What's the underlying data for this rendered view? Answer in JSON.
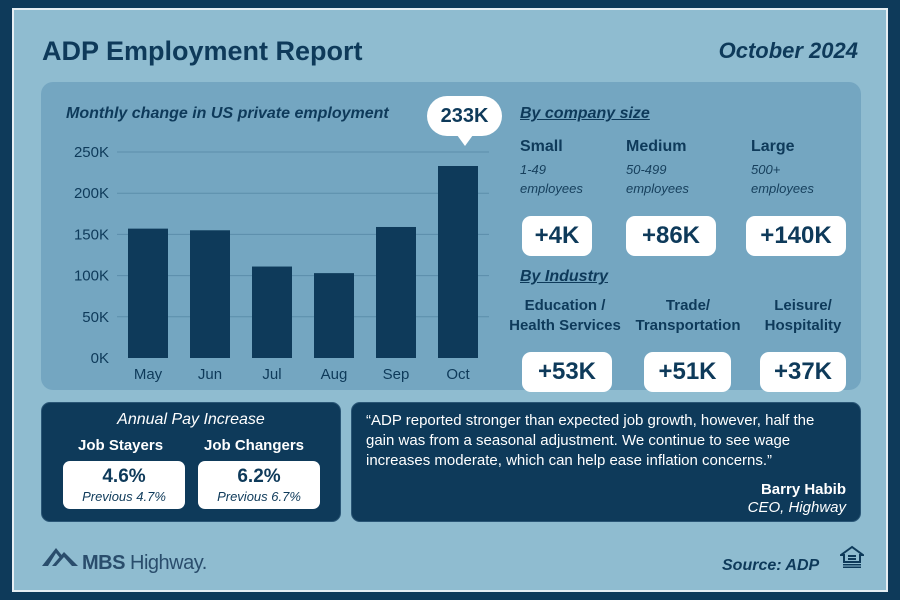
{
  "title": "ADP Employment Report",
  "date": "October 2024",
  "chart": {
    "title": "Monthly change in US private employment",
    "callout": "233K"
  },
  "chart_data": {
    "type": "bar",
    "categories": [
      "May",
      "Jun",
      "Jul",
      "Aug",
      "Sep",
      "Oct"
    ],
    "values": [
      157,
      155,
      111,
      103,
      159,
      233
    ],
    "ylim": [
      0,
      250
    ],
    "yticks": [
      0,
      50,
      100,
      150,
      200,
      250
    ],
    "ytick_labels": [
      "0K",
      "50K",
      "100K",
      "150K",
      "200K",
      "250K"
    ],
    "grid": true,
    "bar_color": "#0e3a5a",
    "title": "Monthly change in US private employment",
    "annotations": [
      {
        "category": "Oct",
        "text": "233K"
      }
    ]
  },
  "company_size": {
    "heading": "By company size",
    "items": [
      {
        "name": "Small",
        "range": "1-49",
        "unit": "employees",
        "value": "+4K"
      },
      {
        "name": "Medium",
        "range": "50-499",
        "unit": "employees",
        "value": "+86K"
      },
      {
        "name": "Large",
        "range": "500+",
        "unit": "employees",
        "value": "+140K"
      }
    ]
  },
  "industry": {
    "heading": "By Industry",
    "items": [
      {
        "line1": "Education /",
        "line2": "Health Services",
        "value": "+53K"
      },
      {
        "line1": "Trade/",
        "line2": "Transportation",
        "value": "+51K"
      },
      {
        "line1": "Leisure/",
        "line2": "Hospitality",
        "value": "+37K"
      }
    ]
  },
  "pay": {
    "title": "Annual Pay Increase",
    "stayers": {
      "label": "Job Stayers",
      "value": "4.6%",
      "prev": "Previous 4.7%"
    },
    "changers": {
      "label": "Job Changers",
      "value": "6.2%",
      "prev": "Previous 6.7%"
    }
  },
  "quote": {
    "text": "“ADP reported stronger than expected job growth, however, half the gain was from a seasonal adjustment. We continue to see wage increases moderate, which can help ease inflation concerns.”",
    "author": "Barry Habib",
    "role": "CEO, Highway"
  },
  "footer": {
    "logo_bold": "MBS",
    "logo_light": "Highway.",
    "source": "Source: ADP"
  },
  "colors": {
    "navy": "#0e3a5a",
    "panel": "#74a6c1",
    "background": "#8fbcd0"
  }
}
